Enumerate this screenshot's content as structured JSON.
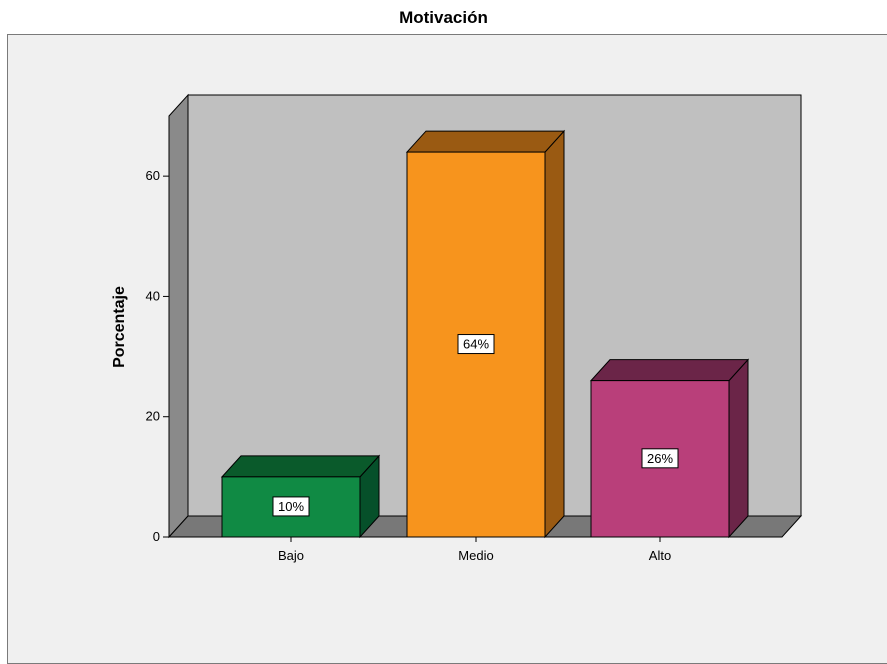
{
  "chart_data": {
    "type": "bar",
    "title": "Motivación",
    "ylabel": "Porcentaje",
    "xlabel": "",
    "categories": [
      "Bajo",
      "Medio",
      "Alto"
    ],
    "values": [
      10,
      64,
      26
    ],
    "data_labels": [
      "10%",
      "64%",
      "26%"
    ],
    "ylim": [
      0,
      70
    ],
    "yticks": [
      0,
      20,
      40,
      60
    ],
    "grid": false,
    "legend": "none",
    "style": "3d",
    "colors": {
      "bars": [
        "#108a44",
        "#f7941d",
        "#b93f7a"
      ],
      "bar_tops": [
        "#0a5a2b",
        "#9a5a12",
        "#6b2548"
      ],
      "bar_sides": [
        "#06502a",
        "#9a5a12",
        "#6b2548"
      ],
      "wall": "#c0c0c0",
      "floor": "#787878",
      "left_wall": "#8a8a8a"
    }
  }
}
